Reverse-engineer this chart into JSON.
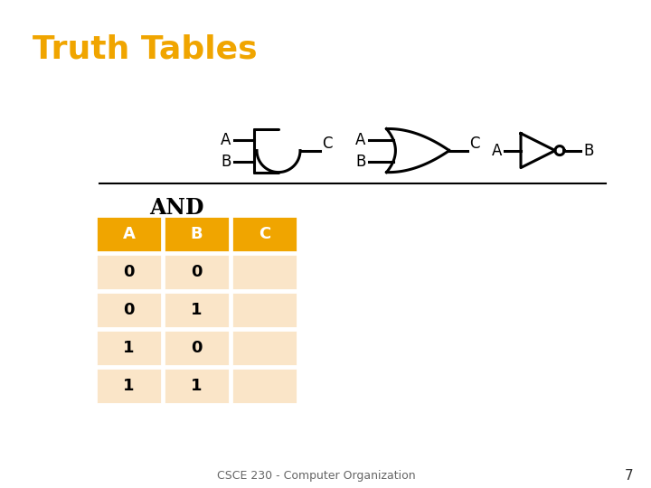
{
  "title": "Truth Tables",
  "title_color": "#F0A500",
  "title_bg": "#000000",
  "title_fontsize": 26,
  "bg_color": "#ffffff",
  "table_label": "AND",
  "table_headers": [
    "A",
    "B",
    "C"
  ],
  "table_rows": [
    [
      "0",
      "0",
      ""
    ],
    [
      "0",
      "1",
      ""
    ],
    [
      "1",
      "0",
      ""
    ],
    [
      "1",
      "1",
      ""
    ]
  ],
  "header_bg": "#F0A500",
  "header_fg": "#ffffff",
  "row_bg": "#FAE5C8",
  "row_fg": "#000000",
  "footer_text": "CSCE 230 - Computer Organization",
  "footer_num": "7",
  "gate_color": "#000000"
}
